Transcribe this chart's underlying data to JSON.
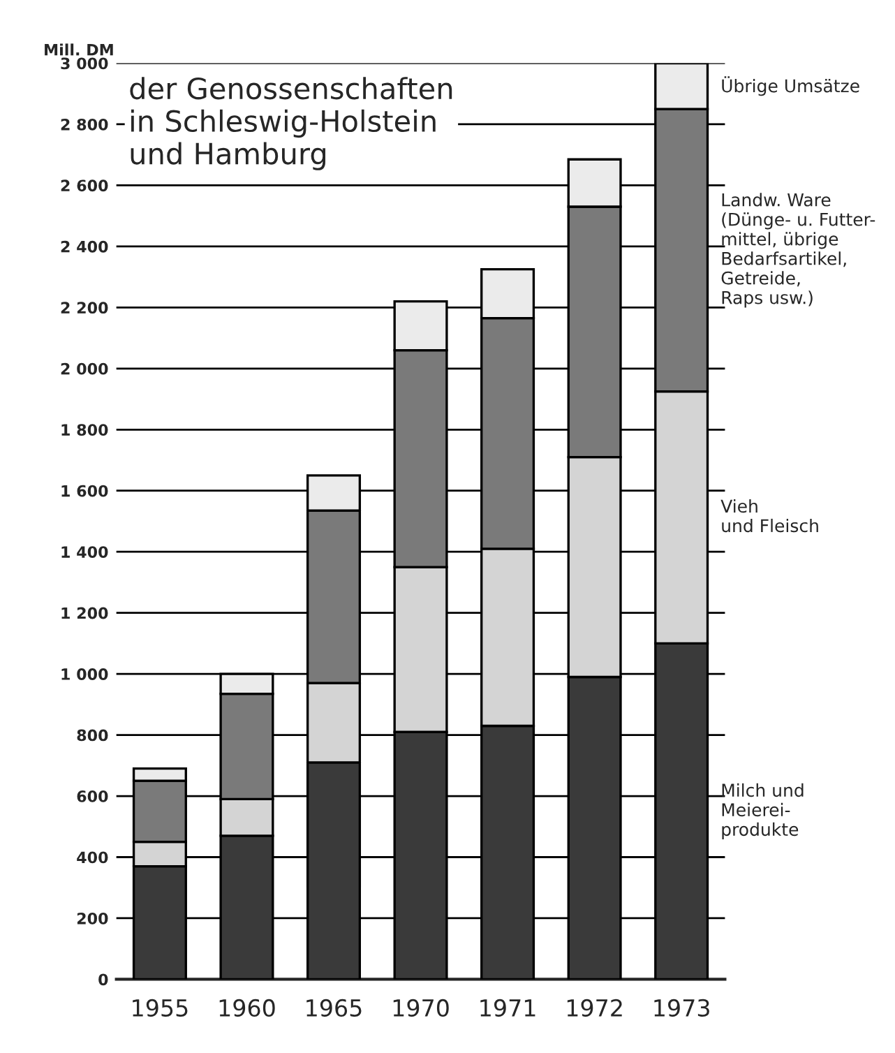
{
  "chart_data": {
    "type": "bar",
    "stacked": true,
    "title": "der Genossenschaften\nin Schleswig-Holstein\nund Hamburg",
    "ylabel": "Mill. DM",
    "categories": [
      "1955",
      "1960",
      "1965",
      "1970",
      "1971",
      "1972",
      "1973"
    ],
    "series": [
      {
        "name": "Milch und\nMeierei-\nprodukte",
        "color": "#3a3a3a",
        "values": [
          370,
          470,
          710,
          810,
          830,
          990,
          1100
        ]
      },
      {
        "name": "Vieh\nund Fleisch",
        "color": "#d4d4d4",
        "values": [
          80,
          120,
          260,
          540,
          580,
          720,
          825
        ]
      },
      {
        "name": "Landw. Ware\n(Dünge- u. Futter-\nmittel, übrige\nBedarfsartikel,\nGetreide,\nRaps usw.)",
        "color": "#7a7a7a",
        "values": [
          200,
          345,
          565,
          710,
          755,
          820,
          925
        ]
      },
      {
        "name": "Übrige Umsätze",
        "color": "#ebebeb",
        "values": [
          40,
          65,
          115,
          160,
          160,
          155,
          150
        ]
      }
    ],
    "ylim": [
      0,
      3000
    ],
    "yticks": [
      0,
      200,
      400,
      600,
      800,
      {
        "value": 1000,
        "label": "1 000"
      },
      {
        "value": 1200,
        "label": "1 200"
      },
      {
        "value": 1400,
        "label": "1 400"
      },
      {
        "value": 1600,
        "label": "1 600"
      },
      {
        "value": 1800,
        "label": "1 800"
      },
      {
        "value": 2000,
        "label": "2 000"
      },
      {
        "value": 2200,
        "label": "2 200"
      },
      {
        "value": 2400,
        "label": "2 400"
      },
      {
        "value": 2600,
        "label": "2 600"
      },
      {
        "value": 2800,
        "label": "2 800"
      },
      {
        "value": 3000,
        "label": "3 000"
      }
    ],
    "grid": "y",
    "legend": false
  }
}
